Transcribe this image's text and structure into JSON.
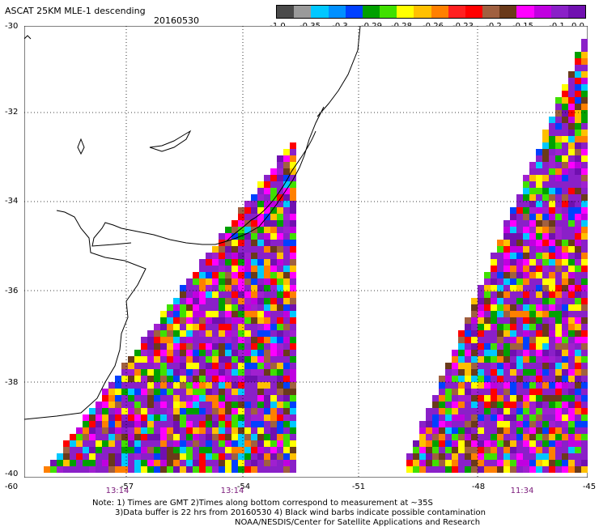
{
  "header": {
    "title": "ASCAT 25KM MLE-1 descending",
    "date": "20160530"
  },
  "colorbar": {
    "colors": [
      "#4a4a4a",
      "#9a9a9a",
      "#00c8ff",
      "#0090ff",
      "#0040ff",
      "#00a000",
      "#40e000",
      "#ffff00",
      "#ffc000",
      "#ff8000",
      "#ff2020",
      "#ff0000",
      "#a06040",
      "#6a3a1a",
      "#ff00ff",
      "#c000e0",
      "#8a20c8",
      "#7010b0"
    ],
    "labels": [
      "-1.0",
      "-0.35",
      "-0.3",
      "-0.29",
      "-0.28",
      "-0.26",
      "-0.23",
      "-0.2",
      "-0.15",
      "-0.1",
      "0.0"
    ]
  },
  "axes": {
    "lat_labels": [
      "-30",
      "-32",
      "-34",
      "-36",
      "-38",
      "-40"
    ],
    "lon_labels": [
      "-60",
      "-57",
      "-54",
      "-51",
      "-48",
      "-45"
    ],
    "time_labels": [
      "13:14",
      "13:14",
      "11:34"
    ]
  },
  "notes": {
    "line1": "Note: 1) Times are GMT 2)Times along bottom correspond to measurement at ~35S",
    "line2": "3)Data buffer is 22 hrs from 20160530 4) Black wind barbs indicate possible contamination",
    "line3": "NOAA/NESDIS/Center for Satellite Applications and Research"
  },
  "map": {
    "swath_palette": [
      "#8a20c8",
      "#8a20c8",
      "#8a20c8",
      "#8a20c8",
      "#7010b0",
      "#a020d0",
      "#c000e0",
      "#ff00ff",
      "#ff0000",
      "#ff8000",
      "#ffff00",
      "#ffc000",
      "#0040ff",
      "#00a000",
      "#6a3a1a",
      "#a06040",
      "#00c8ff",
      "#40e000"
    ]
  }
}
